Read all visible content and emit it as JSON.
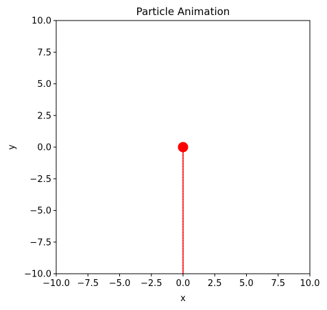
{
  "chart_data": {
    "type": "line",
    "title": "Particle Animation",
    "xlabel": "x",
    "ylabel": "y",
    "xlim": [
      -10,
      10
    ],
    "ylim": [
      -10,
      10
    ],
    "xticks": [
      -10,
      -7.5,
      -5,
      -2.5,
      0,
      2.5,
      5,
      7.5,
      10
    ],
    "yticks": [
      -10,
      -7.5,
      -5,
      -2.5,
      0,
      2.5,
      5,
      7.5,
      10
    ],
    "xtick_labels": [
      "−10.0",
      "−7.5",
      "−5.0",
      "−2.5",
      "0.0",
      "2.5",
      "5.0",
      "7.5",
      "10.0"
    ],
    "ytick_labels": [
      "−10.0",
      "−7.5",
      "−5.0",
      "−2.5",
      "0.0",
      "2.5",
      "5.0",
      "7.5",
      "10.0"
    ],
    "grid": false,
    "series": [
      {
        "kind": "trail",
        "color": "#ff0000",
        "x": [
          0,
          0
        ],
        "y": [
          -10,
          0
        ]
      },
      {
        "kind": "particle",
        "color": "#ff0000",
        "x": [
          0
        ],
        "y": [
          0
        ]
      }
    ]
  }
}
